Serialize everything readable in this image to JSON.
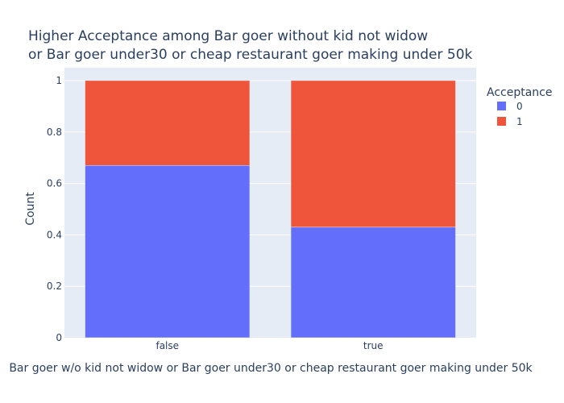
{
  "chart_data": {
    "type": "bar",
    "stacked": true,
    "title_lines": [
      "Higher Acceptance among Bar goer without kid not widow",
      "or Bar goer under30 or cheap restaurant goer making under 50k"
    ],
    "xlabel": "Bar goer w/o kid not widow or Bar goer under30 or cheap restaurant goer making under 50k",
    "ylabel": "Count",
    "categories": [
      "false",
      "true"
    ],
    "ylim": [
      0,
      1.05
    ],
    "yticks": [
      0,
      0.2,
      0.4,
      0.6,
      0.8,
      1
    ],
    "ytick_labels": [
      "0",
      "0.2",
      "0.4",
      "0.6",
      "0.8",
      "1"
    ],
    "grid": true,
    "legend": {
      "title": "Acceptance",
      "placement": "top-right"
    },
    "series": [
      {
        "name": "0",
        "color": "#636efa",
        "values": [
          0.67,
          0.43
        ]
      },
      {
        "name": "1",
        "color": "#ef553b",
        "values": [
          0.33,
          0.57
        ]
      }
    ],
    "plot_background": "#e5ecf6"
  }
}
